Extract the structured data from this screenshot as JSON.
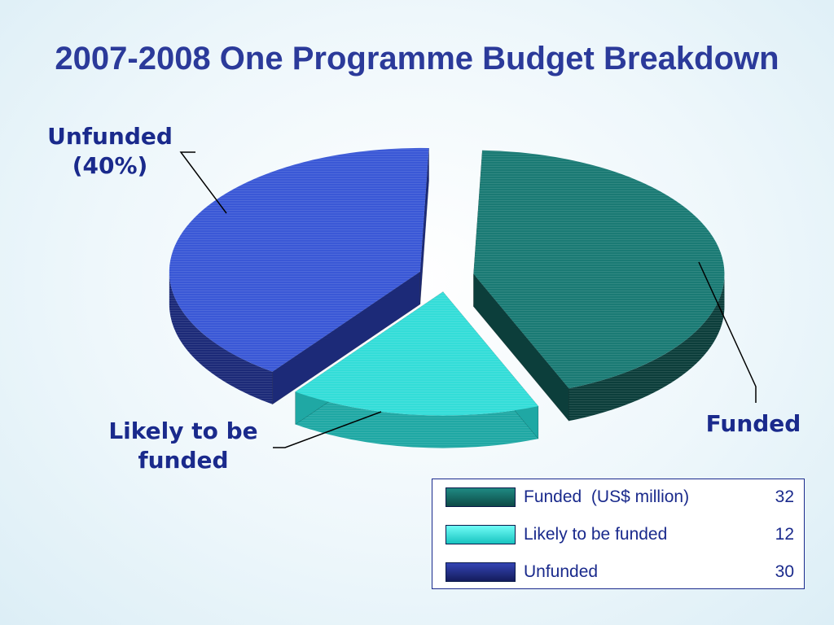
{
  "chart_data": {
    "type": "pie",
    "title": "2007-2008 One Programme Budget Breakdown",
    "categories": [
      "Funded",
      "Likely to be funded",
      "Unfunded"
    ],
    "values": [
      32,
      12,
      30
    ],
    "unit": "US$ million",
    "legend": {
      "header_unit": "(US$ million)",
      "entries": [
        {
          "label": "Funded",
          "value": "32"
        },
        {
          "label": "Likely to be funded",
          "value": "12"
        },
        {
          "label": "Unfunded",
          "value": "30"
        }
      ],
      "placement": "bottom-right"
    },
    "annotations": {
      "unfunded": "Unfunded (40%)",
      "likely": "Likely to be funded",
      "funded": "Funded"
    },
    "colors": {
      "funded": "#1a7a74",
      "likely": "#33ddd8",
      "unfunded": "#3a58d6"
    }
  }
}
